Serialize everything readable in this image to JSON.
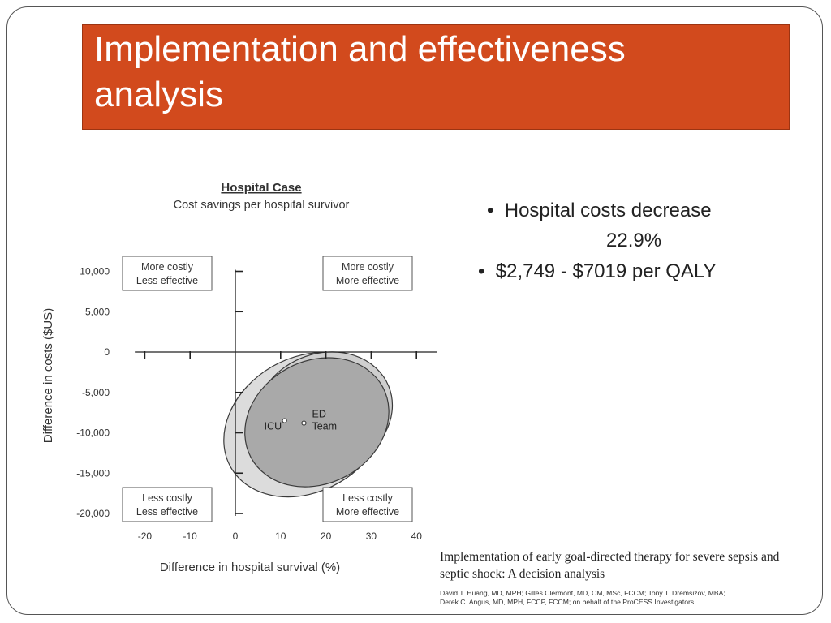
{
  "slide": {
    "title_line1": "Implementation and effectiveness",
    "title_line2": "analysis",
    "bullets": [
      {
        "marker": "•",
        "text": "Hospital costs decrease",
        "continuation": "22.9%"
      },
      {
        "marker": "•",
        "text": "$2,749 - $7019 per QALY"
      }
    ],
    "citation": {
      "title_line1": "Implementation of early goal-directed therapy for severe sepsis and",
      "title_line2": "septic shock: A decision analysis",
      "authors_line1": "David T. Huang, MD, MPH; Gilles Clermont, MD, CM, MSc, FCCM; Tony T. Dremsizov, MBA;",
      "authors_line2": "Derek C. Angus, MD, MPH, FCCP, FCCM; on behalf of the ProCESS Investigators"
    }
  },
  "chart_data": {
    "type": "scatter",
    "title": "Hospital Case",
    "subtitle": "Cost savings per hospital survivor",
    "xlabel": "Difference in hospital survival (%)",
    "ylabel": "Difference in costs ($US)",
    "xlim": [
      -20,
      40
    ],
    "ylim": [
      -20000,
      10000
    ],
    "x_ticks": [
      -20,
      -10,
      0,
      10,
      20,
      30,
      40
    ],
    "x_tick_labels": [
      "-20",
      "-10",
      "0",
      "10",
      "20",
      "30",
      "40"
    ],
    "y_ticks": [
      10000,
      5000,
      0,
      -5000,
      -10000,
      -15000,
      -20000
    ],
    "y_tick_labels": [
      "10,000",
      "5,000",
      "0",
      "-5,000",
      "-10,000",
      "-15,000",
      "-20,000"
    ],
    "grid": false,
    "points": [
      {
        "label": "ICU",
        "x": 17.5,
        "y": -8800
      },
      {
        "label": "ED Team",
        "x": 15.5,
        "y": -8800
      }
    ],
    "ellipses": [
      {
        "cx": 15.5,
        "cy": -9000,
        "rx": 19,
        "ry": 8300,
        "rotate": -30,
        "fill": "#dcdcdc"
      },
      {
        "cx": 19.5,
        "cy": -7500,
        "rx": 15.5,
        "ry": 7300,
        "rotate": -22,
        "fill": "#cfcfcf"
      },
      {
        "cx": 18.0,
        "cy": -8700,
        "rx": 16.5,
        "ry": 7600,
        "rotate": -28,
        "fill": "#a9a9a9"
      }
    ],
    "quadrant_labels": [
      {
        "line1": "More costly",
        "line2": "Less effective"
      },
      {
        "line1": "More costly",
        "line2": "More effective"
      },
      {
        "line1": "Less costly",
        "line2": "Less effective"
      },
      {
        "line1": "Less costly",
        "line2": "More effective"
      }
    ]
  }
}
